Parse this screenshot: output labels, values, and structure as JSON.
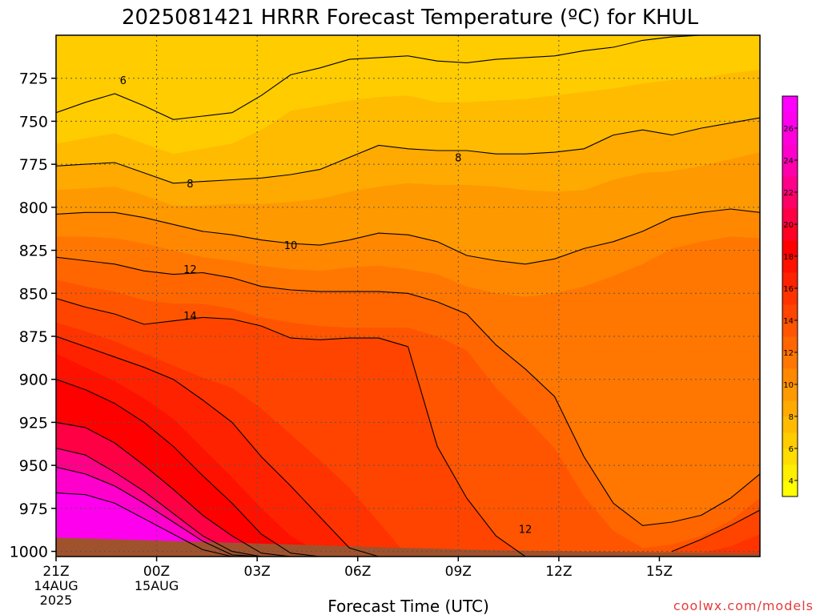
{
  "chart_data": {
    "type": "heatmap",
    "title": "2025081421 HRRR Forecast Temperature (ºC) for KHUL",
    "xlabel": "Forecast Time (UTC)",
    "ylabel": "",
    "credit": "coolwx.com/models",
    "x_ticks": [
      "21Z",
      "00Z",
      "03Z",
      "06Z",
      "09Z",
      "12Z",
      "15Z"
    ],
    "x_tick_sublabels": [
      [
        "14AUG",
        "2025"
      ],
      [
        "15AUG"
      ],
      [],
      [],
      [],
      [],
      []
    ],
    "xlim": [
      "21Z 14AUG 2025",
      "15Z 15AUG 2025"
    ],
    "y_ticks": [
      725,
      750,
      775,
      800,
      825,
      850,
      875,
      900,
      925,
      950,
      975,
      1000
    ],
    "ylim": [
      1003,
      700
    ],
    "grid": true,
    "colorbar": {
      "placement": "right",
      "ticks": [
        4,
        6,
        8,
        10,
        12,
        14,
        16,
        18,
        20,
        22,
        24,
        26
      ],
      "range": [
        3,
        28
      ],
      "colors": {
        "3": "#ffff00",
        "4": "#ffee00",
        "5": "#ffdd00",
        "6": "#ffcc00",
        "7": "#ffbb00",
        "8": "#ffaa00",
        "9": "#ff9900",
        "10": "#ff8800",
        "11": "#ff7700",
        "12": "#ff6600",
        "13": "#ff5500",
        "14": "#ff4400",
        "15": "#ff3300",
        "16": "#ff2200",
        "17": "#ff1100",
        "18": "#ff0000",
        "19": "#ff0022",
        "20": "#ff0044",
        "21": "#ff0066",
        "22": "#ff0088",
        "23": "#ff00aa",
        "24": "#ff00cc",
        "25": "#ff00dd",
        "26": "#ff00ee",
        "27": "#ff00ff"
      }
    },
    "contour_labels": [
      {
        "value": "6",
        "x_hour": -1,
        "y_hpa": 726
      },
      {
        "value": "8",
        "x_hour": 1,
        "y_hpa": 786
      },
      {
        "value": "8",
        "x_hour": 9,
        "y_hpa": 771
      },
      {
        "value": "10",
        "x_hour": 4,
        "y_hpa": 822
      },
      {
        "value": "12",
        "x_hour": 1,
        "y_hpa": 836
      },
      {
        "value": "12",
        "x_hour": 11,
        "y_hpa": 987
      },
      {
        "value": "14",
        "x_hour": 1,
        "y_hpa": 863
      }
    ],
    "levels": [
      {
        "value": 6,
        "y_hpa": [
          745,
          739,
          734,
          741,
          749,
          747,
          745,
          735,
          723,
          719,
          714,
          713,
          712,
          715,
          716,
          714,
          713,
          712,
          709,
          707,
          703,
          701,
          700,
          700,
          700
        ]
      },
      {
        "value": 7,
        "y_hpa": [
          763,
          760,
          757,
          763,
          769,
          766,
          763,
          755,
          744,
          741,
          738,
          736,
          735,
          739,
          739,
          738,
          737,
          735,
          733,
          731,
          728,
          726,
          725,
          722,
          720
        ]
      },
      {
        "value": 8,
        "y_hpa": [
          776,
          775,
          774,
          780,
          786,
          785,
          784,
          783,
          781,
          778,
          771,
          764,
          766,
          767,
          767,
          769,
          769,
          768,
          766,
          758,
          755,
          758,
          754,
          751,
          748
        ]
      },
      {
        "value": 9,
        "y_hpa": [
          790,
          789,
          788,
          793,
          799,
          799,
          798,
          798,
          797,
          795,
          791,
          788,
          786,
          787,
          787,
          788,
          790,
          791,
          790,
          784,
          780,
          779,
          776,
          772,
          768
        ]
      },
      {
        "value": 10,
        "y_hpa": [
          804,
          803,
          803,
          806,
          810,
          814,
          816,
          819,
          821,
          822,
          819,
          815,
          816,
          820,
          828,
          831,
          833,
          830,
          824,
          820,
          814,
          806,
          803,
          801,
          803
        ]
      },
      {
        "value": 11,
        "y_hpa": [
          817,
          817,
          818,
          821,
          825,
          829,
          831,
          834,
          836,
          837,
          835,
          834,
          836,
          839,
          846,
          850,
          852,
          850,
          846,
          840,
          833,
          824,
          820,
          817,
          818
        ]
      },
      {
        "value": 12,
        "y_hpa": [
          829,
          831,
          833,
          837,
          839,
          838,
          841,
          846,
          848,
          849,
          849,
          849,
          850,
          855,
          862,
          880,
          894,
          910,
          945,
          972,
          985,
          983,
          979,
          969,
          955
        ]
      },
      {
        "value": 13,
        "y_hpa": [
          842,
          846,
          849,
          854,
          856,
          856,
          859,
          864,
          867,
          869,
          870,
          870,
          870,
          875,
          883,
          905,
          922,
          940,
          968,
          988,
          998,
          996,
          991,
          982,
          969
        ]
      },
      {
        "value": 14,
        "y_hpa": [
          853,
          858,
          862,
          868,
          866,
          864,
          865,
          869,
          876,
          877,
          876,
          876,
          881,
          939,
          969,
          991,
          1003,
          1003,
          1003,
          1003,
          1003,
          1000,
          993,
          985,
          976
        ]
      },
      {
        "value": 15,
        "y_hpa": [
          867,
          872,
          878,
          885,
          892,
          899,
          905,
          917,
          932,
          947,
          963,
          983,
          1003,
          1003,
          1003,
          1003,
          1003,
          1003,
          1003,
          1003,
          1003,
          1003,
          1001,
          997,
          990
        ]
      },
      {
        "value": 16,
        "y_hpa": [
          875,
          881,
          887,
          893,
          900,
          912,
          925,
          945,
          962,
          980,
          998,
          1003,
          1003,
          1003,
          1003,
          1003,
          1003,
          1003,
          1003,
          1003,
          1003,
          1003,
          1003,
          1003,
          1003
        ]
      },
      {
        "value": 17,
        "y_hpa": [
          885,
          893,
          901,
          911,
          923,
          940,
          957,
          975,
          991,
          1001,
          1003,
          1003,
          1003,
          1003,
          1003,
          1003,
          1003,
          1003,
          1003,
          1003,
          1003,
          1003,
          1003,
          1003,
          1003
        ]
      },
      {
        "value": 18,
        "y_hpa": [
          900,
          906,
          914,
          925,
          939,
          956,
          972,
          990,
          1001,
          1003,
          1003,
          1003,
          1003,
          1003,
          1003,
          1003,
          1003,
          1003,
          1003,
          1003,
          1003,
          1003,
          1003,
          1003,
          1003
        ]
      },
      {
        "value": 20,
        "y_hpa": [
          925,
          928,
          937,
          950,
          964,
          979,
          991,
          1001,
          1003,
          1003,
          1003,
          1003,
          1003,
          1003,
          1003,
          1003,
          1003,
          1003,
          1003,
          1003,
          1003,
          1003,
          1003,
          1003,
          1003
        ]
      },
      {
        "value": 22,
        "y_hpa": [
          940,
          944,
          954,
          965,
          978,
          991,
          1000,
          1003,
          1003,
          1003,
          1003,
          1003,
          1003,
          1003,
          1003,
          1003,
          1003,
          1003,
          1003,
          1003,
          1003,
          1003,
          1003,
          1003,
          1003
        ]
      },
      {
        "value": 24,
        "y_hpa": [
          951,
          955,
          962,
          972,
          983,
          994,
          1002,
          1003,
          1003,
          1003,
          1003,
          1003,
          1003,
          1003,
          1003,
          1003,
          1003,
          1003,
          1003,
          1003,
          1003,
          1003,
          1003,
          1003,
          1003
        ]
      },
      {
        "value": 26,
        "y_hpa": [
          966,
          967,
          972,
          981,
          990,
          999,
          1003,
          1003,
          1003,
          1003,
          1003,
          1003,
          1003,
          1003,
          1003,
          1003,
          1003,
          1003,
          1003,
          1003,
          1003,
          1003,
          1003,
          1003,
          1003
        ]
      }
    ],
    "contoured_levels": [
      6,
      8,
      10,
      12,
      14,
      16,
      18,
      20,
      22,
      24,
      26
    ],
    "surface_pressure_hpa": [
      992,
      992.5,
      993,
      993.5,
      994,
      994.5,
      995,
      995.5,
      996,
      996.5,
      997,
      997.5,
      998,
      998.5,
      999,
      999.3,
      999.6,
      999.8,
      1000,
      1000.2,
      1000.4,
      1000.6,
      1000.8,
      1001,
      1001.2
    ],
    "colors": {
      "ground": "#a0522d",
      "contour": "#000000",
      "grid": "#555555",
      "credit": "#e63c3c"
    }
  }
}
